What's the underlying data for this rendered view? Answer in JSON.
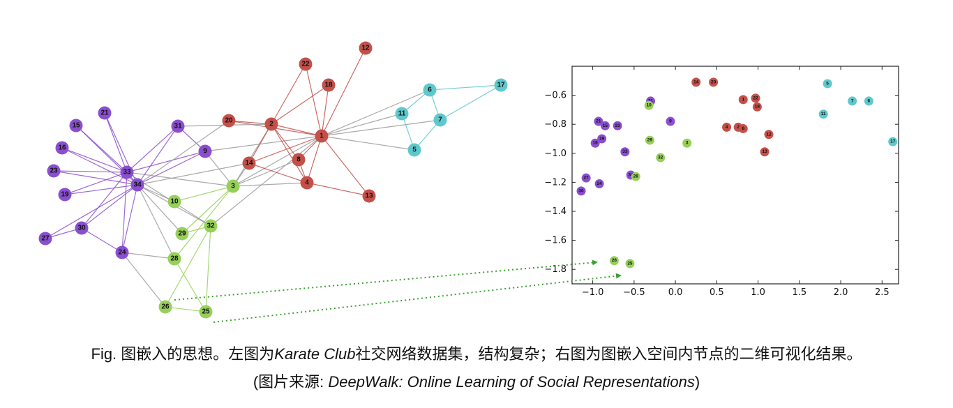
{
  "colors": {
    "purple": "#8a4fd0",
    "red": "#c4504a",
    "green": "#96d05a",
    "cyan": "#5ec8cc",
    "edge_gray": "#9a9a9a",
    "arrow": "#3aa030"
  },
  "graph": {
    "nodes": [
      {
        "id": "1",
        "group": "red"
      },
      {
        "id": "2",
        "group": "red"
      },
      {
        "id": "3",
        "group": "green"
      },
      {
        "id": "4",
        "group": "red"
      },
      {
        "id": "5",
        "group": "cyan"
      },
      {
        "id": "6",
        "group": "cyan"
      },
      {
        "id": "7",
        "group": "cyan"
      },
      {
        "id": "8",
        "group": "red"
      },
      {
        "id": "9",
        "group": "purple"
      },
      {
        "id": "10",
        "group": "green"
      },
      {
        "id": "11",
        "group": "cyan"
      },
      {
        "id": "12",
        "group": "red"
      },
      {
        "id": "13",
        "group": "red"
      },
      {
        "id": "14",
        "group": "red"
      },
      {
        "id": "15",
        "group": "purple"
      },
      {
        "id": "16",
        "group": "purple"
      },
      {
        "id": "17",
        "group": "cyan"
      },
      {
        "id": "18",
        "group": "red"
      },
      {
        "id": "19",
        "group": "purple"
      },
      {
        "id": "20",
        "group": "red"
      },
      {
        "id": "21",
        "group": "purple"
      },
      {
        "id": "22",
        "group": "red"
      },
      {
        "id": "23",
        "group": "purple"
      },
      {
        "id": "24",
        "group": "purple"
      },
      {
        "id": "25",
        "group": "green"
      },
      {
        "id": "26",
        "group": "green"
      },
      {
        "id": "27",
        "group": "purple"
      },
      {
        "id": "28",
        "group": "green"
      },
      {
        "id": "29",
        "group": "green"
      },
      {
        "id": "30",
        "group": "purple"
      },
      {
        "id": "31",
        "group": "purple"
      },
      {
        "id": "32",
        "group": "green"
      },
      {
        "id": "33",
        "group": "purple"
      },
      {
        "id": "34",
        "group": "purple"
      }
    ],
    "edges": [
      [
        "1",
        "2"
      ],
      [
        "1",
        "3"
      ],
      [
        "1",
        "4"
      ],
      [
        "1",
        "5"
      ],
      [
        "1",
        "6"
      ],
      [
        "1",
        "7"
      ],
      [
        "1",
        "8"
      ],
      [
        "1",
        "9"
      ],
      [
        "1",
        "11"
      ],
      [
        "1",
        "12"
      ],
      [
        "1",
        "13"
      ],
      [
        "1",
        "14"
      ],
      [
        "1",
        "18"
      ],
      [
        "1",
        "20"
      ],
      [
        "1",
        "22"
      ],
      [
        "1",
        "32"
      ],
      [
        "2",
        "3"
      ],
      [
        "2",
        "4"
      ],
      [
        "2",
        "8"
      ],
      [
        "2",
        "14"
      ],
      [
        "2",
        "18"
      ],
      [
        "2",
        "20"
      ],
      [
        "2",
        "22"
      ],
      [
        "2",
        "31"
      ],
      [
        "3",
        "4"
      ],
      [
        "3",
        "8"
      ],
      [
        "3",
        "9"
      ],
      [
        "3",
        "10"
      ],
      [
        "3",
        "14"
      ],
      [
        "3",
        "28"
      ],
      [
        "3",
        "29"
      ],
      [
        "3",
        "33"
      ],
      [
        "4",
        "8"
      ],
      [
        "4",
        "13"
      ],
      [
        "4",
        "14"
      ],
      [
        "5",
        "7"
      ],
      [
        "5",
        "11"
      ],
      [
        "6",
        "7"
      ],
      [
        "6",
        "11"
      ],
      [
        "6",
        "17"
      ],
      [
        "7",
        "17"
      ],
      [
        "9",
        "31"
      ],
      [
        "9",
        "33"
      ],
      [
        "9",
        "34"
      ],
      [
        "10",
        "34"
      ],
      [
        "14",
        "34"
      ],
      [
        "15",
        "33"
      ],
      [
        "15",
        "34"
      ],
      [
        "16",
        "33"
      ],
      [
        "16",
        "34"
      ],
      [
        "19",
        "33"
      ],
      [
        "19",
        "34"
      ],
      [
        "20",
        "34"
      ],
      [
        "21",
        "33"
      ],
      [
        "21",
        "34"
      ],
      [
        "23",
        "33"
      ],
      [
        "23",
        "34"
      ],
      [
        "24",
        "26"
      ],
      [
        "24",
        "28"
      ],
      [
        "24",
        "30"
      ],
      [
        "24",
        "33"
      ],
      [
        "24",
        "34"
      ],
      [
        "25",
        "26"
      ],
      [
        "25",
        "28"
      ],
      [
        "25",
        "32"
      ],
      [
        "26",
        "32"
      ],
      [
        "27",
        "30"
      ],
      [
        "27",
        "34"
      ],
      [
        "28",
        "34"
      ],
      [
        "29",
        "32"
      ],
      [
        "29",
        "34"
      ],
      [
        "30",
        "33"
      ],
      [
        "30",
        "34"
      ],
      [
        "31",
        "33"
      ],
      [
        "31",
        "34"
      ],
      [
        "32",
        "33"
      ],
      [
        "32",
        "34"
      ],
      [
        "33",
        "34"
      ]
    ]
  },
  "chart_data": {
    "type": "scatter",
    "title": "",
    "xlabel": "",
    "ylabel": "",
    "xlim": [
      -1.25,
      2.7
    ],
    "ylim": [
      -1.9,
      -0.4
    ],
    "xticks": [
      "−1.0",
      "−0.5",
      "0.0",
      "0.5",
      "1.0",
      "1.5",
      "2.0",
      "2.5"
    ],
    "xtick_values": [
      -1.0,
      -0.5,
      0.0,
      0.5,
      1.0,
      1.5,
      2.0,
      2.5
    ],
    "yticks": [
      "−0.6",
      "−0.8",
      "−1.0",
      "−1.2",
      "−1.4",
      "−1.6",
      "−1.8"
    ],
    "ytick_values": [
      -0.6,
      -0.8,
      -1.0,
      -1.2,
      -1.4,
      -1.6,
      -1.8
    ],
    "grid": false,
    "points": [
      {
        "label": "14",
        "x": 0.25,
        "y": -0.51,
        "group": "red"
      },
      {
        "label": "20",
        "x": 0.46,
        "y": -0.51,
        "group": "red"
      },
      {
        "label": "5",
        "x": 1.84,
        "y": -0.52,
        "group": "cyan"
      },
      {
        "label": "1",
        "x": 0.82,
        "y": -0.63,
        "group": "red"
      },
      {
        "label": "22",
        "x": 0.97,
        "y": -0.62,
        "group": "red"
      },
      {
        "label": "31",
        "x": -0.3,
        "y": -0.64,
        "group": "purple"
      },
      {
        "label": "10",
        "x": -0.32,
        "y": -0.67,
        "group": "green"
      },
      {
        "label": "7",
        "x": 2.14,
        "y": -0.64,
        "group": "cyan"
      },
      {
        "label": "6",
        "x": 2.34,
        "y": -0.64,
        "group": "cyan"
      },
      {
        "label": "18",
        "x": 0.99,
        "y": -0.68,
        "group": "red"
      },
      {
        "label": "11",
        "x": 1.79,
        "y": -0.73,
        "group": "cyan"
      },
      {
        "label": "21",
        "x": -0.93,
        "y": -0.78,
        "group": "purple"
      },
      {
        "label": "15",
        "x": -0.85,
        "y": -0.81,
        "group": "purple"
      },
      {
        "label": "23",
        "x": -0.7,
        "y": -0.81,
        "group": "purple"
      },
      {
        "label": "9",
        "x": -0.06,
        "y": -0.78,
        "group": "purple"
      },
      {
        "label": "4",
        "x": 0.62,
        "y": -0.82,
        "group": "red"
      },
      {
        "label": "2",
        "x": 0.76,
        "y": -0.82,
        "group": "red"
      },
      {
        "label": "8",
        "x": 0.82,
        "y": -0.83,
        "group": "red"
      },
      {
        "label": "12",
        "x": 1.13,
        "y": -0.87,
        "group": "red"
      },
      {
        "label": "19",
        "x": -0.89,
        "y": -0.9,
        "group": "purple"
      },
      {
        "label": "16",
        "x": -0.97,
        "y": -0.93,
        "group": "purple"
      },
      {
        "label": "29",
        "x": -0.31,
        "y": -0.91,
        "group": "green"
      },
      {
        "label": "3",
        "x": 0.14,
        "y": -0.93,
        "group": "green"
      },
      {
        "label": "33",
        "x": -0.61,
        "y": -0.99,
        "group": "purple"
      },
      {
        "label": "13",
        "x": 1.08,
        "y": -0.99,
        "group": "red"
      },
      {
        "label": "32",
        "x": -0.18,
        "y": -1.03,
        "group": "green"
      },
      {
        "label": "17",
        "x": 2.63,
        "y": -0.92,
        "group": "cyan"
      },
      {
        "label": "34",
        "x": -0.54,
        "y": -1.15,
        "group": "purple"
      },
      {
        "label": "28",
        "x": -0.48,
        "y": -1.16,
        "group": "green"
      },
      {
        "label": "27",
        "x": -1.08,
        "y": -1.17,
        "group": "purple"
      },
      {
        "label": "24",
        "x": -0.92,
        "y": -1.21,
        "group": "purple"
      },
      {
        "label": "30",
        "x": -1.14,
        "y": -1.26,
        "group": "purple"
      },
      {
        "label": "26",
        "x": -0.74,
        "y": -1.74,
        "group": "green"
      },
      {
        "label": "25",
        "x": -0.55,
        "y": -1.76,
        "group": "green"
      }
    ]
  },
  "caption": {
    "line1_prefix": "Fig. 图嵌入的思想。左图为",
    "line1_italic": "Karate Club",
    "line1_suffix": "社交网络数据集，结构复杂；右图为图嵌入空间内节点的二维可视化结果。",
    "line2_prefix": "(图片来源: ",
    "line2_italic": "DeepWalk: Online Learning of Social Representations",
    "line2_suffix": ")"
  }
}
